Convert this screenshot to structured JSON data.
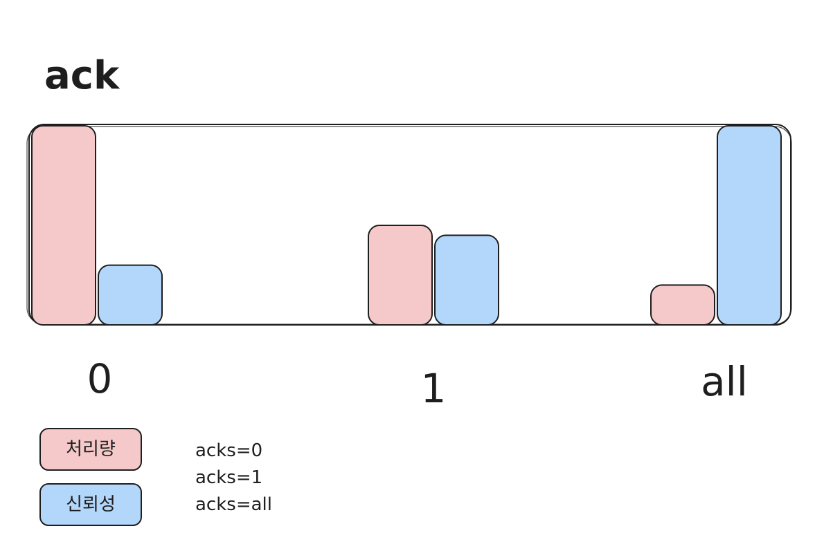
{
  "chart_data": {
    "type": "bar",
    "title": "ack",
    "categories": [
      "0",
      "1",
      "all"
    ],
    "series": [
      {
        "name": "처리량",
        "color": "#f5c9c9",
        "values": [
          10,
          5,
          2
        ]
      },
      {
        "name": "신뢰성",
        "color": "#b3d7fb",
        "values": [
          3,
          4.5,
          10
        ]
      }
    ],
    "ylim": [
      0,
      10
    ],
    "grid": false,
    "legend_position": "bottom-left"
  },
  "notes": [
    "acks=0",
    "acks=1",
    "acks=all"
  ],
  "colors": {
    "stroke": "#1e1e1e",
    "background": "#ffffff"
  }
}
